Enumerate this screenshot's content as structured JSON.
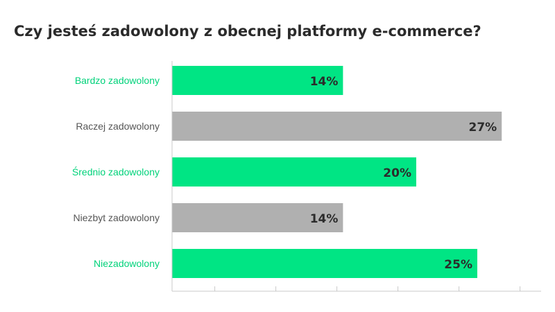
{
  "chart_data": {
    "type": "bar",
    "orientation": "horizontal",
    "title": "Czy jesteś zadowolony z obecnej platformy e-commerce?",
    "categories": [
      "Bardzo zadowolony",
      "Raczej zadowolony",
      "Średnio zadowolony",
      "Niezbyt zadowolony",
      "Niezadowolony"
    ],
    "values": [
      14,
      27,
      20,
      14,
      25
    ],
    "value_labels": [
      "14%",
      "27%",
      "20%",
      "14%",
      "25%"
    ],
    "xlim": [
      0,
      30
    ],
    "xticks": [
      0,
      3.5,
      8.5,
      13.5,
      18.5,
      23.5,
      28.5
    ],
    "bar_colors": [
      "#00e584",
      "#b0b0b0",
      "#00e584",
      "#b0b0b0",
      "#00e584"
    ],
    "label_colors": [
      "#00d27a",
      "#555555",
      "#00d27a",
      "#555555",
      "#00d27a"
    ],
    "grid": false,
    "legend": "none"
  }
}
